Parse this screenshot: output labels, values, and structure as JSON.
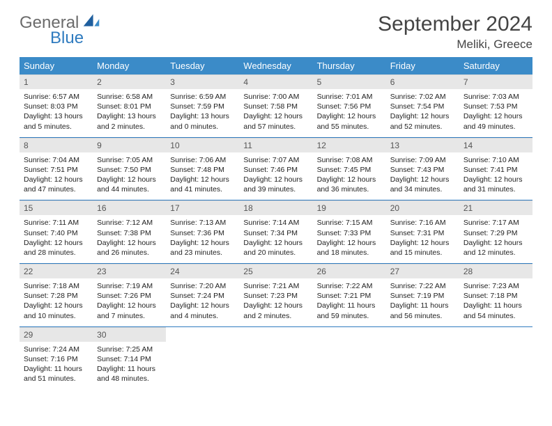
{
  "logo": {
    "general": "General",
    "blue": "Blue"
  },
  "title": "September 2024",
  "location": "Meliki, Greece",
  "colors": {
    "header_bg": "#3b8bc8",
    "header_text": "#ffffff",
    "daynum_bg": "#e7e7e7",
    "rule": "#2f7bbf",
    "logo_gray": "#6b6b6b",
    "logo_blue": "#2f7bbf"
  },
  "weekdays": [
    "Sunday",
    "Monday",
    "Tuesday",
    "Wednesday",
    "Thursday",
    "Friday",
    "Saturday"
  ],
  "weeks": [
    [
      {
        "n": "1",
        "sr": "Sunrise: 6:57 AM",
        "ss": "Sunset: 8:03 PM",
        "dl": "Daylight: 13 hours and 5 minutes."
      },
      {
        "n": "2",
        "sr": "Sunrise: 6:58 AM",
        "ss": "Sunset: 8:01 PM",
        "dl": "Daylight: 13 hours and 2 minutes."
      },
      {
        "n": "3",
        "sr": "Sunrise: 6:59 AM",
        "ss": "Sunset: 7:59 PM",
        "dl": "Daylight: 13 hours and 0 minutes."
      },
      {
        "n": "4",
        "sr": "Sunrise: 7:00 AM",
        "ss": "Sunset: 7:58 PM",
        "dl": "Daylight: 12 hours and 57 minutes."
      },
      {
        "n": "5",
        "sr": "Sunrise: 7:01 AM",
        "ss": "Sunset: 7:56 PM",
        "dl": "Daylight: 12 hours and 55 minutes."
      },
      {
        "n": "6",
        "sr": "Sunrise: 7:02 AM",
        "ss": "Sunset: 7:54 PM",
        "dl": "Daylight: 12 hours and 52 minutes."
      },
      {
        "n": "7",
        "sr": "Sunrise: 7:03 AM",
        "ss": "Sunset: 7:53 PM",
        "dl": "Daylight: 12 hours and 49 minutes."
      }
    ],
    [
      {
        "n": "8",
        "sr": "Sunrise: 7:04 AM",
        "ss": "Sunset: 7:51 PM",
        "dl": "Daylight: 12 hours and 47 minutes."
      },
      {
        "n": "9",
        "sr": "Sunrise: 7:05 AM",
        "ss": "Sunset: 7:50 PM",
        "dl": "Daylight: 12 hours and 44 minutes."
      },
      {
        "n": "10",
        "sr": "Sunrise: 7:06 AM",
        "ss": "Sunset: 7:48 PM",
        "dl": "Daylight: 12 hours and 41 minutes."
      },
      {
        "n": "11",
        "sr": "Sunrise: 7:07 AM",
        "ss": "Sunset: 7:46 PM",
        "dl": "Daylight: 12 hours and 39 minutes."
      },
      {
        "n": "12",
        "sr": "Sunrise: 7:08 AM",
        "ss": "Sunset: 7:45 PM",
        "dl": "Daylight: 12 hours and 36 minutes."
      },
      {
        "n": "13",
        "sr": "Sunrise: 7:09 AM",
        "ss": "Sunset: 7:43 PM",
        "dl": "Daylight: 12 hours and 34 minutes."
      },
      {
        "n": "14",
        "sr": "Sunrise: 7:10 AM",
        "ss": "Sunset: 7:41 PM",
        "dl": "Daylight: 12 hours and 31 minutes."
      }
    ],
    [
      {
        "n": "15",
        "sr": "Sunrise: 7:11 AM",
        "ss": "Sunset: 7:40 PM",
        "dl": "Daylight: 12 hours and 28 minutes."
      },
      {
        "n": "16",
        "sr": "Sunrise: 7:12 AM",
        "ss": "Sunset: 7:38 PM",
        "dl": "Daylight: 12 hours and 26 minutes."
      },
      {
        "n": "17",
        "sr": "Sunrise: 7:13 AM",
        "ss": "Sunset: 7:36 PM",
        "dl": "Daylight: 12 hours and 23 minutes."
      },
      {
        "n": "18",
        "sr": "Sunrise: 7:14 AM",
        "ss": "Sunset: 7:34 PM",
        "dl": "Daylight: 12 hours and 20 minutes."
      },
      {
        "n": "19",
        "sr": "Sunrise: 7:15 AM",
        "ss": "Sunset: 7:33 PM",
        "dl": "Daylight: 12 hours and 18 minutes."
      },
      {
        "n": "20",
        "sr": "Sunrise: 7:16 AM",
        "ss": "Sunset: 7:31 PM",
        "dl": "Daylight: 12 hours and 15 minutes."
      },
      {
        "n": "21",
        "sr": "Sunrise: 7:17 AM",
        "ss": "Sunset: 7:29 PM",
        "dl": "Daylight: 12 hours and 12 minutes."
      }
    ],
    [
      {
        "n": "22",
        "sr": "Sunrise: 7:18 AM",
        "ss": "Sunset: 7:28 PM",
        "dl": "Daylight: 12 hours and 10 minutes."
      },
      {
        "n": "23",
        "sr": "Sunrise: 7:19 AM",
        "ss": "Sunset: 7:26 PM",
        "dl": "Daylight: 12 hours and 7 minutes."
      },
      {
        "n": "24",
        "sr": "Sunrise: 7:20 AM",
        "ss": "Sunset: 7:24 PM",
        "dl": "Daylight: 12 hours and 4 minutes."
      },
      {
        "n": "25",
        "sr": "Sunrise: 7:21 AM",
        "ss": "Sunset: 7:23 PM",
        "dl": "Daylight: 12 hours and 2 minutes."
      },
      {
        "n": "26",
        "sr": "Sunrise: 7:22 AM",
        "ss": "Sunset: 7:21 PM",
        "dl": "Daylight: 11 hours and 59 minutes."
      },
      {
        "n": "27",
        "sr": "Sunrise: 7:22 AM",
        "ss": "Sunset: 7:19 PM",
        "dl": "Daylight: 11 hours and 56 minutes."
      },
      {
        "n": "28",
        "sr": "Sunrise: 7:23 AM",
        "ss": "Sunset: 7:18 PM",
        "dl": "Daylight: 11 hours and 54 minutes."
      }
    ],
    [
      {
        "n": "29",
        "sr": "Sunrise: 7:24 AM",
        "ss": "Sunset: 7:16 PM",
        "dl": "Daylight: 11 hours and 51 minutes."
      },
      {
        "n": "30",
        "sr": "Sunrise: 7:25 AM",
        "ss": "Sunset: 7:14 PM",
        "dl": "Daylight: 11 hours and 48 minutes."
      },
      {
        "empty": true
      },
      {
        "empty": true
      },
      {
        "empty": true
      },
      {
        "empty": true
      },
      {
        "empty": true
      }
    ]
  ]
}
